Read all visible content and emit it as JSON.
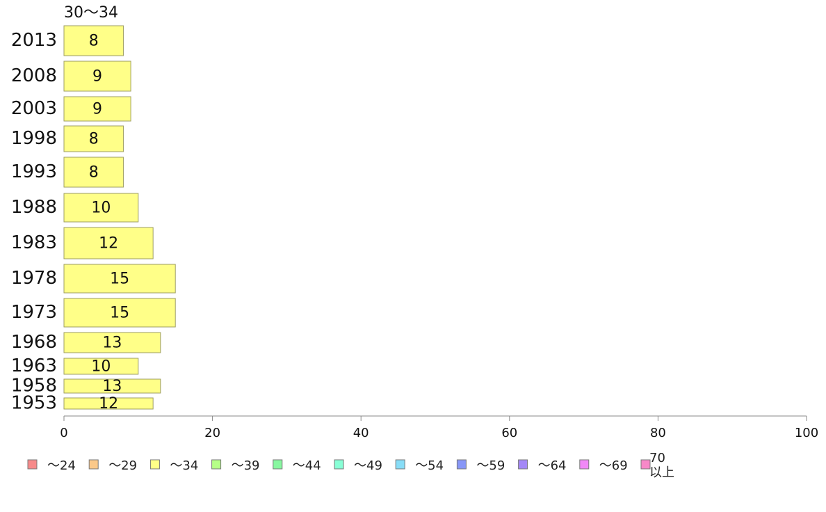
{
  "chart_data": {
    "type": "bar",
    "orientation": "horizontal",
    "stacked": true,
    "series_title": "30〜34",
    "categories": [
      "2013",
      "2008",
      "2003",
      "1998",
      "1993",
      "1988",
      "1983",
      "1978",
      "1973",
      "1968",
      "1963",
      "1958",
      "1953"
    ],
    "series": [
      {
        "name": "30〜34",
        "values": [
          8,
          9,
          9,
          8,
          8,
          10,
          12,
          15,
          15,
          13,
          10,
          13,
          12
        ]
      }
    ],
    "xlim": [
      0,
      100
    ],
    "xticks": [
      "0",
      "20",
      "40",
      "60",
      "80",
      "100"
    ],
    "bar_color": "#ffff88",
    "bar_stroke": "#9e9e62",
    "legend": {
      "placement": "bottom",
      "items": [
        {
          "label": "〜24",
          "color": "#f78a8a"
        },
        {
          "label": "〜29",
          "color": "#fbc98a"
        },
        {
          "label": "〜34",
          "color": "#ffff88"
        },
        {
          "label": "〜39",
          "color": "#b6ff88"
        },
        {
          "label": "〜44",
          "color": "#88f7a0"
        },
        {
          "label": "〜49",
          "color": "#88ffd6"
        },
        {
          "label": "〜54",
          "color": "#88ddf7"
        },
        {
          "label": "〜59",
          "color": "#8897f7"
        },
        {
          "label": "〜64",
          "color": "#a488f7"
        },
        {
          "label": "〜69",
          "color": "#f188f7"
        },
        {
          "label": "70\n以上",
          "color": "#f788c8"
        }
      ]
    }
  }
}
